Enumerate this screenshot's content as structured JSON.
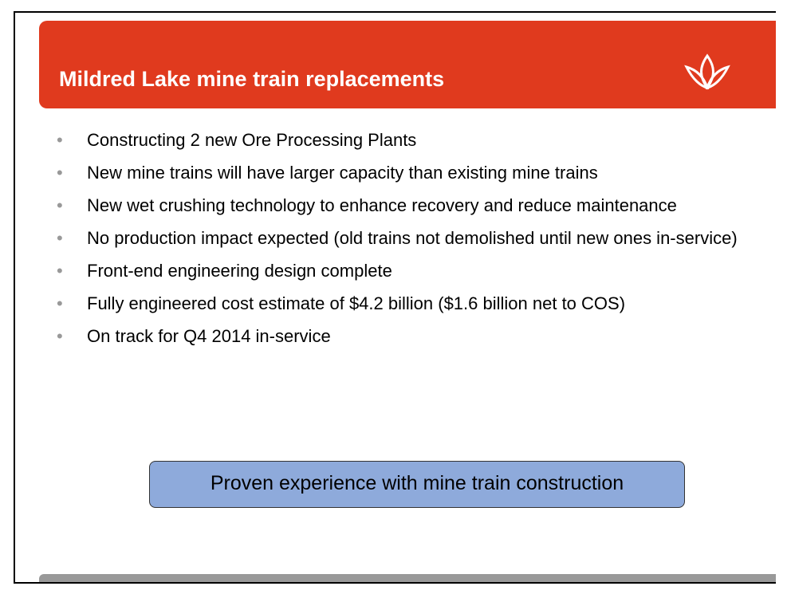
{
  "header": {
    "title": "Mildred Lake mine train replacements"
  },
  "bullets": [
    "Constructing 2 new Ore Processing Plants",
    "New mine trains will have larger capacity than existing mine trains",
    "New wet crushing technology to enhance recovery and reduce maintenance",
    "No production impact expected (old trains not demolished until new ones in-service)",
    "Front-end engineering design complete",
    "Fully engineered cost estimate of $4.2 billion ($1.6 billion net to COS)",
    "On track for Q4 2014 in-service"
  ],
  "callout": "Proven experience with mine train construction"
}
